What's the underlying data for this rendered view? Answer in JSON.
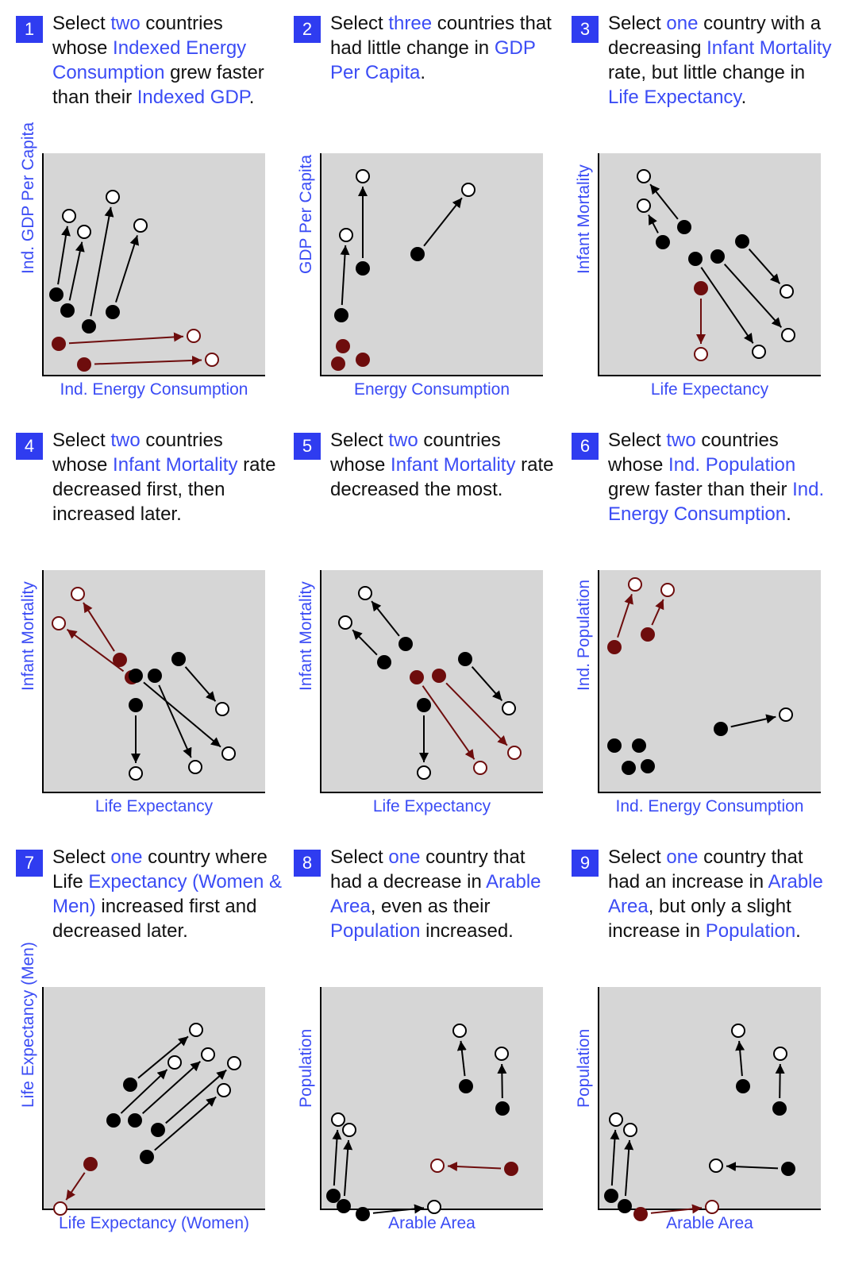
{
  "colors": {
    "accent": "#2f3cf0",
    "text_highlight": "#3b4cf5",
    "highlight_mark": "#6e0d0d",
    "plot_bg": "#d6d6d6"
  },
  "panels": [
    {
      "number": "1",
      "question": [
        [
          "Select ",
          false
        ],
        [
          "two",
          true
        ],
        [
          " countries whose ",
          false
        ],
        [
          "Indexed Energy Consumption",
          true
        ],
        [
          " grew faster than their ",
          false
        ],
        [
          "Indexed GDP",
          true
        ],
        [
          ".",
          false
        ]
      ],
      "xlabel": "Ind. Energy Consumption",
      "ylabel": "Ind. GDP Per Capita"
    },
    {
      "number": "2",
      "question": [
        [
          "Select ",
          false
        ],
        [
          "three",
          true
        ],
        [
          " countries that had little change in ",
          false
        ],
        [
          "GDP Per Capita",
          true
        ],
        [
          ".",
          false
        ]
      ],
      "xlabel": "Energy Consumption",
      "ylabel": "GDP Per Capita"
    },
    {
      "number": "3",
      "question": [
        [
          "Select ",
          false
        ],
        [
          "one",
          true
        ],
        [
          " country with a decreasing ",
          false
        ],
        [
          "Infant Mortality",
          true
        ],
        [
          " rate, but little change in ",
          false
        ],
        [
          "Life Expectancy",
          true
        ],
        [
          ".",
          false
        ]
      ],
      "xlabel": "Life Expectancy",
      "ylabel": "Infant Mortality"
    },
    {
      "number": "4",
      "question": [
        [
          "Select ",
          false
        ],
        [
          "two",
          true
        ],
        [
          " countries whose ",
          false
        ],
        [
          "Infant Mortality",
          true
        ],
        [
          " rate decreased first, then increased later.",
          false
        ]
      ],
      "xlabel": "Life Expectancy",
      "ylabel": "Infant Mortality"
    },
    {
      "number": "5",
      "question": [
        [
          "Select ",
          false
        ],
        [
          "two",
          true
        ],
        [
          " countries whose ",
          false
        ],
        [
          "Infant Mortality",
          true
        ],
        [
          " rate decreased the most.",
          false
        ]
      ],
      "xlabel": "Life Expectancy",
      "ylabel": "Infant Mortality"
    },
    {
      "number": "6",
      "question": [
        [
          "Select ",
          false
        ],
        [
          "two",
          true
        ],
        [
          " countries whose ",
          false
        ],
        [
          "Ind. Population",
          true
        ],
        [
          " grew faster than their ",
          false
        ],
        [
          "Ind. Energy Consumption",
          true
        ],
        [
          ".",
          false
        ]
      ],
      "xlabel": "Ind. Energy Consumption",
      "ylabel": "Ind. Population"
    },
    {
      "number": "7",
      "question": [
        [
          "Select ",
          false
        ],
        [
          "one",
          true
        ],
        [
          " country where Life ",
          false
        ],
        [
          "Expectancy (Women & Men)",
          true
        ],
        [
          " increased first and decreased later.",
          false
        ]
      ],
      "xlabel": "Life Expectancy (Women)",
      "ylabel": "Life Expectancy (Men)"
    },
    {
      "number": "8",
      "question": [
        [
          "Select ",
          false
        ],
        [
          "one",
          true
        ],
        [
          " country that had a decrease in ",
          false
        ],
        [
          "Arable Area",
          true
        ],
        [
          ", even as their ",
          false
        ],
        [
          "Population",
          true
        ],
        [
          " increased.",
          false
        ]
      ],
      "xlabel": "Arable Area",
      "ylabel": "Population"
    },
    {
      "number": "9",
      "question": [
        [
          "Select ",
          false
        ],
        [
          "one",
          true
        ],
        [
          " country that had an increase in ",
          false
        ],
        [
          "Arable Area",
          true
        ],
        [
          ", but only a slight increase in ",
          false
        ],
        [
          "Population",
          true
        ],
        [
          ".",
          false
        ]
      ],
      "xlabel": "Arable Area",
      "ylabel": "Population"
    }
  ],
  "chart_data": [
    {
      "type": "scatter",
      "title": "",
      "xlabel": "Ind. Energy Consumption",
      "ylabel": "Ind. GDP Per Capita",
      "xlim": [
        0,
        280
      ],
      "ylim": [
        0,
        280
      ],
      "series": [
        {
          "from": [
            17,
            102
          ],
          "to": [
            33,
            201
          ],
          "highlight": false
        },
        {
          "from": [
            31,
            82
          ],
          "to": [
            52,
            181
          ],
          "highlight": false
        },
        {
          "from": [
            58,
            62
          ],
          "to": [
            88,
            225
          ],
          "highlight": false
        },
        {
          "from": [
            88,
            80
          ],
          "to": [
            123,
            189
          ],
          "highlight": false
        },
        {
          "from": [
            20,
            40
          ],
          "to": [
            190,
            50
          ],
          "highlight": true
        },
        {
          "from": [
            52,
            14
          ],
          "to": [
            213,
            20
          ],
          "highlight": true
        }
      ]
    },
    {
      "type": "scatter",
      "title": "",
      "xlabel": "Energy Consumption",
      "ylabel": "GDP Per Capita",
      "xlim": [
        0,
        280
      ],
      "ylim": [
        0,
        280
      ],
      "series": [
        {
          "from": [
            26,
            76
          ],
          "to": [
            32,
            177
          ],
          "highlight": false
        },
        {
          "from": [
            53,
            135
          ],
          "to": [
            53,
            251
          ],
          "highlight": false
        },
        {
          "from": [
            122,
            153
          ],
          "to": [
            186,
            234
          ],
          "highlight": false
        },
        {
          "from": [
            28,
            37
          ],
          "to": [
            28,
            37
          ],
          "highlight": true
        },
        {
          "from": [
            22,
            15
          ],
          "to": [
            22,
            15
          ],
          "highlight": true
        },
        {
          "from": [
            53,
            20
          ],
          "to": [
            53,
            20
          ],
          "highlight": true
        }
      ]
    },
    {
      "type": "scatter",
      "title": "",
      "xlabel": "Life Expectancy",
      "ylabel": "Infant Mortality",
      "xlim": [
        0,
        280
      ],
      "ylim": [
        0,
        280
      ],
      "series": [
        {
          "from": [
            81,
            168
          ],
          "to": [
            57,
            214
          ],
          "highlight": false
        },
        {
          "from": [
            108,
            187
          ],
          "to": [
            57,
            251
          ],
          "highlight": false
        },
        {
          "from": [
            122,
            147
          ],
          "to": [
            202,
            30
          ],
          "highlight": false
        },
        {
          "from": [
            150,
            150
          ],
          "to": [
            239,
            51
          ],
          "highlight": false
        },
        {
          "from": [
            181,
            169
          ],
          "to": [
            237,
            106
          ],
          "highlight": false
        },
        {
          "from": [
            129,
            110
          ],
          "to": [
            129,
            27
          ],
          "highlight": true
        }
      ]
    },
    {
      "type": "scatter",
      "title": "",
      "xlabel": "Life Expectancy",
      "ylabel": "Infant Mortality",
      "xlim": [
        0,
        280
      ],
      "ylim": [
        0,
        280
      ],
      "series": [
        {
          "from": [
            112,
            145
          ],
          "to": [
            20,
            213
          ],
          "highlight": true
        },
        {
          "from": [
            97,
            167
          ],
          "to": [
            44,
            250
          ],
          "highlight": true
        },
        {
          "from": [
            117,
            110
          ],
          "to": [
            117,
            24
          ],
          "highlight": false
        },
        {
          "from": [
            141,
            147
          ],
          "to": [
            192,
            32
          ],
          "highlight": false
        },
        {
          "from": [
            171,
            168
          ],
          "to": [
            226,
            105
          ],
          "highlight": false
        },
        {
          "from": [
            117,
            147
          ],
          "to": [
            234,
            49
          ],
          "highlight": false
        }
      ]
    },
    {
      "type": "scatter",
      "title": "",
      "xlabel": "Life Expectancy",
      "ylabel": "Infant Mortality",
      "xlim": [
        0,
        280
      ],
      "ylim": [
        0,
        280
      ],
      "series": [
        {
          "from": [
            80,
            164
          ],
          "to": [
            31,
            214
          ],
          "highlight": false
        },
        {
          "from": [
            107,
            187
          ],
          "to": [
            56,
            251
          ],
          "highlight": false
        },
        {
          "from": [
            130,
            110
          ],
          "to": [
            130,
            25
          ],
          "highlight": false
        },
        {
          "from": [
            182,
            168
          ],
          "to": [
            237,
            106
          ],
          "highlight": false
        },
        {
          "from": [
            121,
            145
          ],
          "to": [
            201,
            31
          ],
          "highlight": true
        },
        {
          "from": [
            149,
            147
          ],
          "to": [
            244,
            50
          ],
          "highlight": true
        }
      ]
    },
    {
      "type": "scatter",
      "title": "",
      "xlabel": "Ind. Energy Consumption",
      "ylabel": "Ind. Population",
      "xlim": [
        0,
        280
      ],
      "ylim": [
        0,
        280
      ],
      "series": [
        {
          "from": [
            20,
            183
          ],
          "to": [
            46,
            262
          ],
          "highlight": true
        },
        {
          "from": [
            62,
            199
          ],
          "to": [
            87,
            255
          ],
          "highlight": true
        },
        {
          "from": [
            154,
            80
          ],
          "to": [
            236,
            98
          ],
          "highlight": false
        },
        {
          "from": [
            20,
            59
          ],
          "to": [
            20,
            59
          ],
          "highlight": false
        },
        {
          "from": [
            51,
            59
          ],
          "to": [
            51,
            59
          ],
          "highlight": false
        },
        {
          "from": [
            38,
            31
          ],
          "to": [
            38,
            31
          ],
          "highlight": false
        },
        {
          "from": [
            62,
            33
          ],
          "to": [
            62,
            33
          ],
          "highlight": false
        }
      ]
    },
    {
      "type": "scatter",
      "title": "",
      "xlabel": "Life Expectancy (Women)",
      "ylabel": "Life Expectancy (Men)",
      "xlim": [
        0,
        280
      ],
      "ylim": [
        0,
        280
      ],
      "series": [
        {
          "from": [
            110,
            157
          ],
          "to": [
            193,
            226
          ],
          "highlight": false
        },
        {
          "from": [
            89,
            112
          ],
          "to": [
            166,
            185
          ],
          "highlight": false
        },
        {
          "from": [
            116,
            112
          ],
          "to": [
            208,
            195
          ],
          "highlight": false
        },
        {
          "from": [
            145,
            100
          ],
          "to": [
            241,
            184
          ],
          "highlight": false
        },
        {
          "from": [
            131,
            66
          ],
          "to": [
            228,
            150
          ],
          "highlight": false
        },
        {
          "from": [
            60,
            57
          ],
          "to": [
            22,
            1
          ],
          "highlight": true
        }
      ]
    },
    {
      "type": "scatter",
      "title": "",
      "xlabel": "Arable Area",
      "ylabel": "Population",
      "xlim": [
        0,
        280
      ],
      "ylim": [
        0,
        280
      ],
      "series": [
        {
          "from": [
            16,
            17
          ],
          "to": [
            22,
            113
          ],
          "highlight": false
        },
        {
          "from": [
            29,
            4
          ],
          "to": [
            36,
            100
          ],
          "highlight": false
        },
        {
          "from": [
            53,
            -6
          ],
          "to": [
            143,
            3
          ],
          "highlight": false
        },
        {
          "from": [
            183,
            155
          ],
          "to": [
            175,
            225
          ],
          "highlight": false
        },
        {
          "from": [
            229,
            127
          ],
          "to": [
            228,
            196
          ],
          "highlight": false
        },
        {
          "from": [
            240,
            51
          ],
          "to": [
            147,
            55
          ],
          "highlight": true
        }
      ]
    },
    {
      "type": "scatter",
      "title": "",
      "xlabel": "Arable Area",
      "ylabel": "Population",
      "xlim": [
        0,
        280
      ],
      "ylim": [
        0,
        280
      ],
      "series": [
        {
          "from": [
            16,
            17
          ],
          "to": [
            22,
            113
          ],
          "highlight": false
        },
        {
          "from": [
            33,
            4
          ],
          "to": [
            40,
            100
          ],
          "highlight": false
        },
        {
          "from": [
            182,
            155
          ],
          "to": [
            176,
            225
          ],
          "highlight": false
        },
        {
          "from": [
            228,
            127
          ],
          "to": [
            229,
            196
          ],
          "highlight": false
        },
        {
          "from": [
            239,
            51
          ],
          "to": [
            148,
            55
          ],
          "highlight": false
        },
        {
          "from": [
            53,
            -6
          ],
          "to": [
            143,
            3
          ],
          "highlight": true
        }
      ]
    }
  ]
}
